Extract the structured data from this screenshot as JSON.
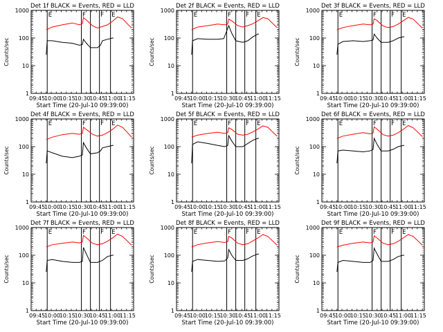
{
  "chart_data": {
    "type": "line",
    "layout": "3x3 grid",
    "x_start": "2010-07-20 09:39:00",
    "x_range": [
      "09:39",
      "11:21"
    ],
    "x_ticks": [
      "09:45",
      "10:00",
      "10:15",
      "10:30",
      "10:45",
      "11:00",
      "11:15"
    ],
    "ylim": [
      1,
      1000
    ],
    "yscale": "log",
    "y_ticks": [
      "1",
      "10",
      "100",
      "1000"
    ],
    "ylabel": "Counts/sec",
    "xlabel": "Start Time (20-Jul-10 09:39:00)",
    "vertical_markers": [
      {
        "time": "09:55",
        "label": "E"
      },
      {
        "time": "10:29",
        "label": "F"
      },
      {
        "time": "10:38",
        "label": ""
      },
      {
        "time": "10:47",
        "label": "F"
      },
      {
        "time": "10:58",
        "label": "E"
      }
    ],
    "colors": {
      "events": "#000000",
      "lld": "#ff0000",
      "axes": "#000000"
    },
    "panels": [
      {
        "title": "Det 1f BLACK = Events, RED = LLD",
        "series": [
          {
            "name": "Events",
            "color": "#000000",
            "x": [
              "09:54",
              "09:55",
              "10:00",
              "10:10",
              "10:20",
              "10:27",
              "10:30",
              "10:31",
              "10:34",
              "10:38",
              "10:45",
              "10:48",
              "10:50",
              "10:55",
              "11:00",
              "11:01"
            ],
            "values": [
              25,
              80,
              80,
              70,
              65,
              55,
              58,
              90,
              65,
              45,
              45,
              55,
              80,
              90,
              100,
              100
            ]
          },
          {
            "name": "LLD",
            "color": "#ff0000",
            "x": [
              "09:54",
              "10:00",
              "10:10",
              "10:20",
              "10:27",
              "10:30",
              "10:31",
              "10:34",
              "10:40",
              "10:45",
              "10:50",
              "10:55",
              "11:00",
              "11:05",
              "11:10",
              "11:15",
              "11:19"
            ],
            "values": [
              200,
              250,
              300,
              350,
              300,
              330,
              550,
              450,
              280,
              230,
              260,
              300,
              400,
              580,
              500,
              320,
              230
            ]
          }
        ]
      },
      {
        "title": "Det 2f BLACK = Events, RED = LLD",
        "series": [
          {
            "name": "Events",
            "color": "#000000",
            "x": [
              "09:54",
              "09:55",
              "10:00",
              "10:10",
              "10:20",
              "10:26",
              "10:31",
              "10:34",
              "10:38",
              "10:45",
              "10:50",
              "10:55",
              "11:00",
              "11:01"
            ],
            "values": [
              25,
              80,
              95,
              90,
              90,
              95,
              280,
              150,
              80,
              70,
              80,
              110,
              140,
              140
            ]
          },
          {
            "name": "LLD",
            "color": "#ff0000",
            "x": [
              "09:54",
              "10:00",
              "10:10",
              "10:20",
              "10:27",
              "10:30",
              "10:31",
              "10:34",
              "10:40",
              "10:45",
              "10:50",
              "10:55",
              "11:00",
              "11:05",
              "11:10",
              "11:15",
              "11:19"
            ],
            "values": [
              200,
              250,
              280,
              320,
              300,
              320,
              480,
              420,
              280,
              250,
              280,
              330,
              420,
              550,
              500,
              330,
              240
            ]
          }
        ]
      },
      {
        "title": "Det 3f BLACK = Events, RED = LLD",
        "series": [
          {
            "name": "Events",
            "color": "#000000",
            "x": [
              "09:54",
              "09:55",
              "10:00",
              "10:10",
              "10:20",
              "10:27",
              "10:30",
              "10:31",
              "10:34",
              "10:38",
              "10:45",
              "10:50",
              "10:55",
              "11:00",
              "11:01"
            ],
            "values": [
              25,
              60,
              75,
              80,
              75,
              80,
              85,
              140,
              100,
              70,
              70,
              80,
              100,
              110,
              110
            ]
          },
          {
            "name": "LLD",
            "color": "#ff0000",
            "x": [
              "09:54",
              "10:00",
              "10:10",
              "10:20",
              "10:27",
              "10:30",
              "10:31",
              "10:34",
              "10:40",
              "10:45",
              "10:50",
              "10:55",
              "11:00",
              "11:05",
              "11:10",
              "11:15",
              "11:19"
            ],
            "values": [
              200,
              240,
              280,
              320,
              300,
              320,
              500,
              430,
              270,
              240,
              260,
              320,
              420,
              560,
              480,
              320,
              230
            ]
          }
        ]
      },
      {
        "title": "Det 4f BLACK = Events, RED = LLD",
        "series": [
          {
            "name": "Events",
            "color": "#000000",
            "x": [
              "09:54",
              "09:55",
              "10:00",
              "10:10",
              "10:20",
              "10:27",
              "10:30",
              "10:31",
              "10:34",
              "10:38",
              "10:45",
              "10:48",
              "10:50",
              "10:55",
              "11:00",
              "11:01"
            ],
            "values": [
              25,
              70,
              60,
              45,
              40,
              45,
              50,
              140,
              90,
              55,
              60,
              70,
              90,
              100,
              110,
              110
            ]
          },
          {
            "name": "LLD",
            "color": "#ff0000",
            "x": [
              "09:54",
              "10:00",
              "10:10",
              "10:20",
              "10:27",
              "10:30",
              "10:31",
              "10:34",
              "10:40",
              "10:45",
              "10:50",
              "10:55",
              "11:00",
              "11:05",
              "11:10",
              "11:15",
              "11:19"
            ],
            "values": [
              180,
              220,
              270,
              300,
              280,
              300,
              500,
              420,
              280,
              240,
              260,
              320,
              420,
              600,
              500,
              320,
              220
            ]
          }
        ]
      },
      {
        "title": "Det 5f BLACK = Events, RED = LLD",
        "series": [
          {
            "name": "Events",
            "color": "#000000",
            "x": [
              "09:54",
              "09:55",
              "10:00",
              "10:10",
              "10:20",
              "10:27",
              "10:30",
              "10:31",
              "10:34",
              "10:38",
              "10:45",
              "10:50",
              "10:55",
              "11:00",
              "11:01"
            ],
            "values": [
              25,
              120,
              150,
              130,
              110,
              100,
              110,
              250,
              160,
              100,
              100,
              130,
              170,
              200,
              200
            ]
          },
          {
            "name": "LLD",
            "color": "#ff0000",
            "x": [
              "09:54",
              "10:00",
              "10:10",
              "10:20",
              "10:27",
              "10:30",
              "10:31",
              "10:34",
              "10:40",
              "10:45",
              "10:50",
              "10:55",
              "11:00",
              "11:05",
              "11:10",
              "11:15",
              "11:19"
            ],
            "values": [
              220,
              260,
              300,
              330,
              300,
              320,
              480,
              420,
              280,
              260,
              280,
              340,
              430,
              560,
              500,
              330,
              240
            ]
          }
        ]
      },
      {
        "title": "Det 6f BLACK = Events, RED = LLD",
        "series": [
          {
            "name": "Events",
            "color": "#000000",
            "x": [
              "09:54",
              "09:55",
              "10:00",
              "10:10",
              "10:20",
              "10:27",
              "10:30",
              "10:31",
              "10:34",
              "10:38",
              "10:45",
              "10:50",
              "10:55",
              "11:00",
              "11:01"
            ],
            "values": [
              25,
              70,
              75,
              70,
              65,
              70,
              80,
              200,
              120,
              70,
              70,
              80,
              100,
              110,
              110
            ]
          },
          {
            "name": "LLD",
            "color": "#ff0000",
            "x": [
              "09:54",
              "10:00",
              "10:10",
              "10:20",
              "10:27",
              "10:30",
              "10:31",
              "10:34",
              "10:40",
              "10:45",
              "10:50",
              "10:55",
              "11:00",
              "11:05",
              "11:10",
              "11:15",
              "11:19"
            ],
            "values": [
              200,
              240,
              280,
              320,
              290,
              310,
              520,
              430,
              270,
              240,
              260,
              320,
              420,
              580,
              480,
              320,
              230
            ]
          }
        ]
      },
      {
        "title": "Det 7f BLACK = Events, RED = LLD",
        "series": [
          {
            "name": "Events",
            "color": "#000000",
            "x": [
              "09:54",
              "09:55",
              "10:00",
              "10:10",
              "10:20",
              "10:27",
              "10:30",
              "10:31",
              "10:34",
              "10:38",
              "10:45",
              "10:50",
              "10:55",
              "11:00",
              "11:01"
            ],
            "values": [
              25,
              65,
              70,
              60,
              55,
              55,
              60,
              190,
              110,
              55,
              55,
              65,
              90,
              100,
              100
            ]
          },
          {
            "name": "LLD",
            "color": "#ff0000",
            "x": [
              "09:54",
              "10:00",
              "10:10",
              "10:20",
              "10:27",
              "10:30",
              "10:31",
              "10:34",
              "10:40",
              "10:45",
              "10:50",
              "10:55",
              "11:00",
              "11:05",
              "11:10",
              "11:15",
              "11:19"
            ],
            "values": [
              200,
              240,
              270,
              300,
              280,
              300,
              520,
              430,
              270,
              240,
              260,
              320,
              420,
              580,
              480,
              320,
              230
            ]
          }
        ]
      },
      {
        "title": "Det 8f BLACK = Events, RED = LLD",
        "series": [
          {
            "name": "Events",
            "color": "#000000",
            "x": [
              "09:54",
              "09:55",
              "10:00",
              "10:10",
              "10:20",
              "10:27",
              "10:30",
              "10:31",
              "10:34",
              "10:38",
              "10:45",
              "10:50",
              "10:55",
              "11:00",
              "11:01"
            ],
            "values": [
              25,
              60,
              70,
              65,
              60,
              62,
              80,
              160,
              100,
              65,
              65,
              75,
              95,
              110,
              110
            ]
          },
          {
            "name": "LLD",
            "color": "#ff0000",
            "x": [
              "09:54",
              "10:00",
              "10:10",
              "10:20",
              "10:27",
              "10:30",
              "10:31",
              "10:34",
              "10:40",
              "10:45",
              "10:50",
              "10:55",
              "11:00",
              "11:05",
              "11:10",
              "11:15",
              "11:19"
            ],
            "values": [
              200,
              240,
              280,
              310,
              290,
              310,
              480,
              420,
              270,
              240,
              260,
              330,
              420,
              560,
              480,
              320,
              230
            ]
          }
        ]
      },
      {
        "title": "Det 9f BLACK = Events, RED = LLD",
        "series": [
          {
            "name": "Events",
            "color": "#000000",
            "x": [
              "09:54",
              "09:55",
              "10:00",
              "10:10",
              "10:20",
              "10:27",
              "10:30",
              "10:31",
              "10:34",
              "10:38",
              "10:45",
              "10:50",
              "10:55",
              "11:00",
              "11:01"
            ],
            "values": [
              25,
              55,
              65,
              60,
              55,
              55,
              65,
              180,
              110,
              60,
              60,
              70,
              90,
              100,
              100
            ]
          },
          {
            "name": "LLD",
            "color": "#ff0000",
            "x": [
              "09:54",
              "10:00",
              "10:10",
              "10:20",
              "10:27",
              "10:30",
              "10:31",
              "10:34",
              "10:40",
              "10:45",
              "10:50",
              "10:55",
              "11:00",
              "11:05",
              "11:10",
              "11:15",
              "11:19"
            ],
            "values": [
              200,
              230,
              270,
              300,
              280,
              300,
              500,
              420,
              270,
              240,
              260,
              320,
              420,
              560,
              480,
              320,
              230
            ]
          }
        ]
      }
    ]
  }
}
